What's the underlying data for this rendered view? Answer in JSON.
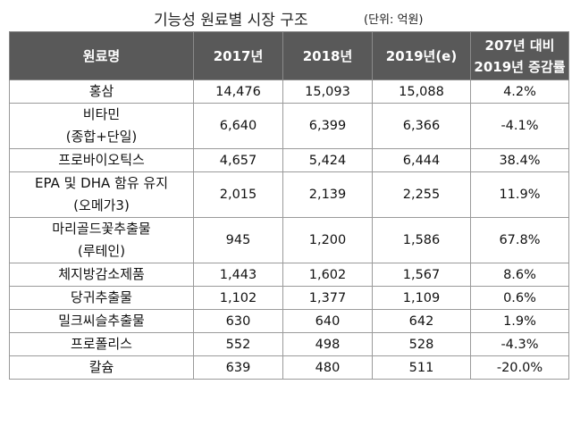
{
  "title": "기능성 원료별 시장 구조",
  "unit": "(단위: 억원)",
  "headers": {
    "name": "원료명",
    "y2017": "2017년",
    "y2018": "2018년",
    "y2019": "2019년(e)",
    "change_line1": "207년 대비",
    "change_line2": "2019년 증감률"
  },
  "rows": [
    {
      "name1": "홍삼",
      "name2": "",
      "v2017": "14,476",
      "v2018": "15,093",
      "v2019": "15,088",
      "change": "4.2%"
    },
    {
      "name1": "비타민",
      "name2": "(종합+단일)",
      "v2017": "6,640",
      "v2018": "6,399",
      "v2019": "6,366",
      "change": "-4.1%"
    },
    {
      "name1": "프로바이오틱스",
      "name2": "",
      "v2017": "4,657",
      "v2018": "5,424",
      "v2019": "6,444",
      "change": "38.4%"
    },
    {
      "name1": "EPA 및 DHA 함유 유지",
      "name2": "(오메가3)",
      "v2017": "2,015",
      "v2018": "2,139",
      "v2019": "2,255",
      "change": "11.9%"
    },
    {
      "name1": "마리골드꽃추출물",
      "name2": "(루테인)",
      "v2017": "945",
      "v2018": "1,200",
      "v2019": "1,586",
      "change": "67.8%"
    },
    {
      "name1": "체지방감소제품",
      "name2": "",
      "v2017": "1,443",
      "v2018": "1,602",
      "v2019": "1,567",
      "change": "8.6%"
    },
    {
      "name1": "당귀추출물",
      "name2": "",
      "v2017": "1,102",
      "v2018": "1,377",
      "v2019": "1,109",
      "change": "0.6%"
    },
    {
      "name1": "밀크씨슬추출물",
      "name2": "",
      "v2017": "630",
      "v2018": "640",
      "v2019": "642",
      "change": "1.9%"
    },
    {
      "name1": "프로폴리스",
      "name2": "",
      "v2017": "552",
      "v2018": "498",
      "v2019": "528",
      "change": "-4.3%"
    },
    {
      "name1": "칼슘",
      "name2": "",
      "v2017": "639",
      "v2018": "480",
      "v2019": "511",
      "change": "-20.0%"
    }
  ]
}
